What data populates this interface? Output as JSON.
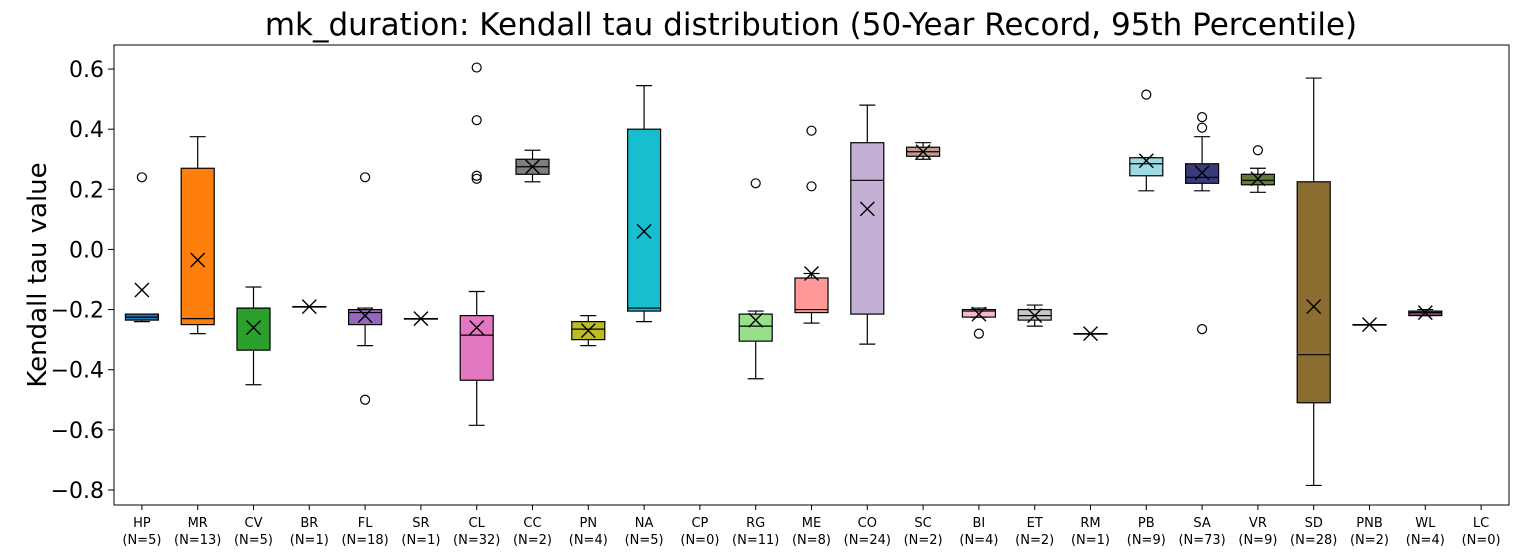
{
  "chart_data": {
    "type": "box",
    "title": "mk_duration: Kendall tau distribution (50-Year Record, 95th Percentile)",
    "xlabel": "",
    "ylabel": "Kendall tau value",
    "ylim": [
      -0.85,
      0.68
    ],
    "yticks": [
      0.6,
      0.4,
      0.2,
      0.0,
      -0.2,
      -0.4,
      -0.6,
      -0.8
    ],
    "ytick_labels": [
      "0.6",
      "0.4",
      "0.2",
      "0.0",
      "−0.2",
      "−0.4",
      "−0.6",
      "−0.8"
    ],
    "grid": false,
    "mean_marker": "x",
    "boxes": [
      {
        "name": "HP",
        "n_label": "(N=5)",
        "color": "#1f77b4",
        "whislo": -0.24,
        "q1": -0.235,
        "median": -0.225,
        "q3": -0.215,
        "whishi": -0.215,
        "mean": -0.135,
        "fliers": [
          0.24
        ]
      },
      {
        "name": "MR",
        "n_label": "(N=13)",
        "color": "#ff7f0e",
        "whislo": -0.28,
        "q1": -0.25,
        "median": -0.23,
        "q3": 0.27,
        "whishi": 0.375,
        "mean": -0.035,
        "fliers": []
      },
      {
        "name": "CV",
        "n_label": "(N=5)",
        "color": "#2ca02c",
        "whislo": -0.45,
        "q1": -0.335,
        "median": -0.195,
        "q3": -0.195,
        "whishi": -0.125,
        "mean": -0.26,
        "fliers": []
      },
      {
        "name": "BR",
        "n_label": "(N=1)",
        "color": "#d62728",
        "whislo": -0.19,
        "q1": -0.19,
        "median": -0.19,
        "q3": -0.19,
        "whishi": -0.19,
        "mean": -0.19,
        "fliers": []
      },
      {
        "name": "FL",
        "n_label": "(N=18)",
        "color": "#9467bd",
        "whislo": -0.32,
        "q1": -0.25,
        "median": -0.21,
        "q3": -0.2,
        "whishi": -0.195,
        "mean": -0.22,
        "fliers": [
          0.24,
          -0.5
        ]
      },
      {
        "name": "SR",
        "n_label": "(N=1)",
        "color": "#8c564b",
        "whislo": -0.23,
        "q1": -0.23,
        "median": -0.23,
        "q3": -0.23,
        "whishi": -0.23,
        "mean": -0.23,
        "fliers": []
      },
      {
        "name": "CL",
        "n_label": "(N=32)",
        "color": "#e377c2",
        "whislo": -0.585,
        "q1": -0.435,
        "median": -0.285,
        "q3": -0.22,
        "whishi": -0.14,
        "mean": -0.26,
        "fliers": [
          0.605,
          0.43,
          0.245,
          0.235
        ]
      },
      {
        "name": "CC",
        "n_label": "(N=2)",
        "color": "#7f7f7f",
        "whislo": 0.225,
        "q1": 0.25,
        "median": 0.275,
        "q3": 0.3,
        "whishi": 0.33,
        "mean": 0.275,
        "fliers": []
      },
      {
        "name": "PN",
        "n_label": "(N=4)",
        "color": "#bcbd22",
        "whislo": -0.32,
        "q1": -0.3,
        "median": -0.265,
        "q3": -0.24,
        "whishi": -0.22,
        "mean": -0.27,
        "fliers": []
      },
      {
        "name": "NA",
        "n_label": "(N=5)",
        "color": "#17becf",
        "whislo": -0.24,
        "q1": -0.205,
        "median": -0.195,
        "q3": 0.4,
        "whishi": 0.545,
        "mean": 0.06,
        "fliers": []
      },
      {
        "name": "CP",
        "n_label": "(N=0)",
        "color": "#1f77b4",
        "empty": true
      },
      {
        "name": "RG",
        "n_label": "(N=11)",
        "color": "#98df8a",
        "whislo": -0.43,
        "q1": -0.305,
        "median": -0.255,
        "q3": -0.215,
        "whishi": -0.205,
        "mean": -0.235,
        "fliers": [
          0.22
        ]
      },
      {
        "name": "ME",
        "n_label": "(N=8)",
        "color": "#ff9896",
        "whislo": -0.245,
        "q1": -0.21,
        "median": -0.2,
        "q3": -0.095,
        "whishi": -0.08,
        "mean": -0.08,
        "fliers": [
          0.395,
          0.21
        ]
      },
      {
        "name": "CO",
        "n_label": "(N=24)",
        "color": "#c5b0d5",
        "whislo": -0.315,
        "q1": -0.215,
        "median": 0.23,
        "q3": 0.355,
        "whishi": 0.48,
        "mean": 0.135,
        "fliers": []
      },
      {
        "name": "SC",
        "n_label": "(N=2)",
        "color": "#c49c94",
        "whislo": 0.3,
        "q1": 0.31,
        "median": 0.325,
        "q3": 0.34,
        "whishi": 0.355,
        "mean": 0.325,
        "fliers": []
      },
      {
        "name": "BI",
        "n_label": "(N=4)",
        "color": "#f7b6d2",
        "whislo": -0.225,
        "q1": -0.225,
        "median": -0.205,
        "q3": -0.2,
        "whishi": -0.195,
        "mean": -0.215,
        "fliers": [
          -0.28
        ]
      },
      {
        "name": "ET",
        "n_label": "(N=2)",
        "color": "#c7c7c7",
        "whislo": -0.255,
        "q1": -0.235,
        "median": -0.22,
        "q3": -0.2,
        "whishi": -0.185,
        "mean": -0.22,
        "fliers": []
      },
      {
        "name": "RM",
        "n_label": "(N=1)",
        "color": "#dbdb8d",
        "whislo": -0.28,
        "q1": -0.28,
        "median": -0.28,
        "q3": -0.28,
        "whishi": -0.28,
        "mean": -0.28,
        "fliers": []
      },
      {
        "name": "PB",
        "n_label": "(N=9)",
        "color": "#9edae5",
        "whislo": 0.195,
        "q1": 0.245,
        "median": 0.285,
        "q3": 0.305,
        "whishi": 0.305,
        "mean": 0.295,
        "fliers": [
          0.515
        ]
      },
      {
        "name": "SA",
        "n_label": "(N=73)",
        "color": "#393b79",
        "whislo": 0.195,
        "q1": 0.22,
        "median": 0.24,
        "q3": 0.285,
        "whishi": 0.375,
        "mean": 0.255,
        "fliers": [
          0.44,
          0.405,
          -0.265
        ]
      },
      {
        "name": "VR",
        "n_label": "(N=9)",
        "color": "#637939",
        "whislo": 0.19,
        "q1": 0.215,
        "median": 0.23,
        "q3": 0.25,
        "whishi": 0.27,
        "mean": 0.235,
        "fliers": [
          0.33
        ]
      },
      {
        "name": "SD",
        "n_label": "(N=28)",
        "color": "#8c6d31",
        "whislo": -0.785,
        "q1": -0.51,
        "median": -0.35,
        "q3": 0.225,
        "whishi": 0.57,
        "mean": -0.19,
        "fliers": []
      },
      {
        "name": "PNB",
        "n_label": "(N=2)",
        "color": "#843c39",
        "whislo": -0.25,
        "q1": -0.25,
        "median": -0.25,
        "q3": -0.25,
        "whishi": -0.25,
        "mean": -0.25,
        "fliers": []
      },
      {
        "name": "WL",
        "n_label": "(N=4)",
        "color": "#7b4173",
        "whislo": -0.22,
        "q1": -0.22,
        "median": -0.21,
        "q3": -0.205,
        "whishi": -0.2,
        "mean": -0.21,
        "fliers": []
      },
      {
        "name": "LC",
        "n_label": "(N=0)",
        "color": "#3182bd",
        "empty": true
      }
    ]
  }
}
